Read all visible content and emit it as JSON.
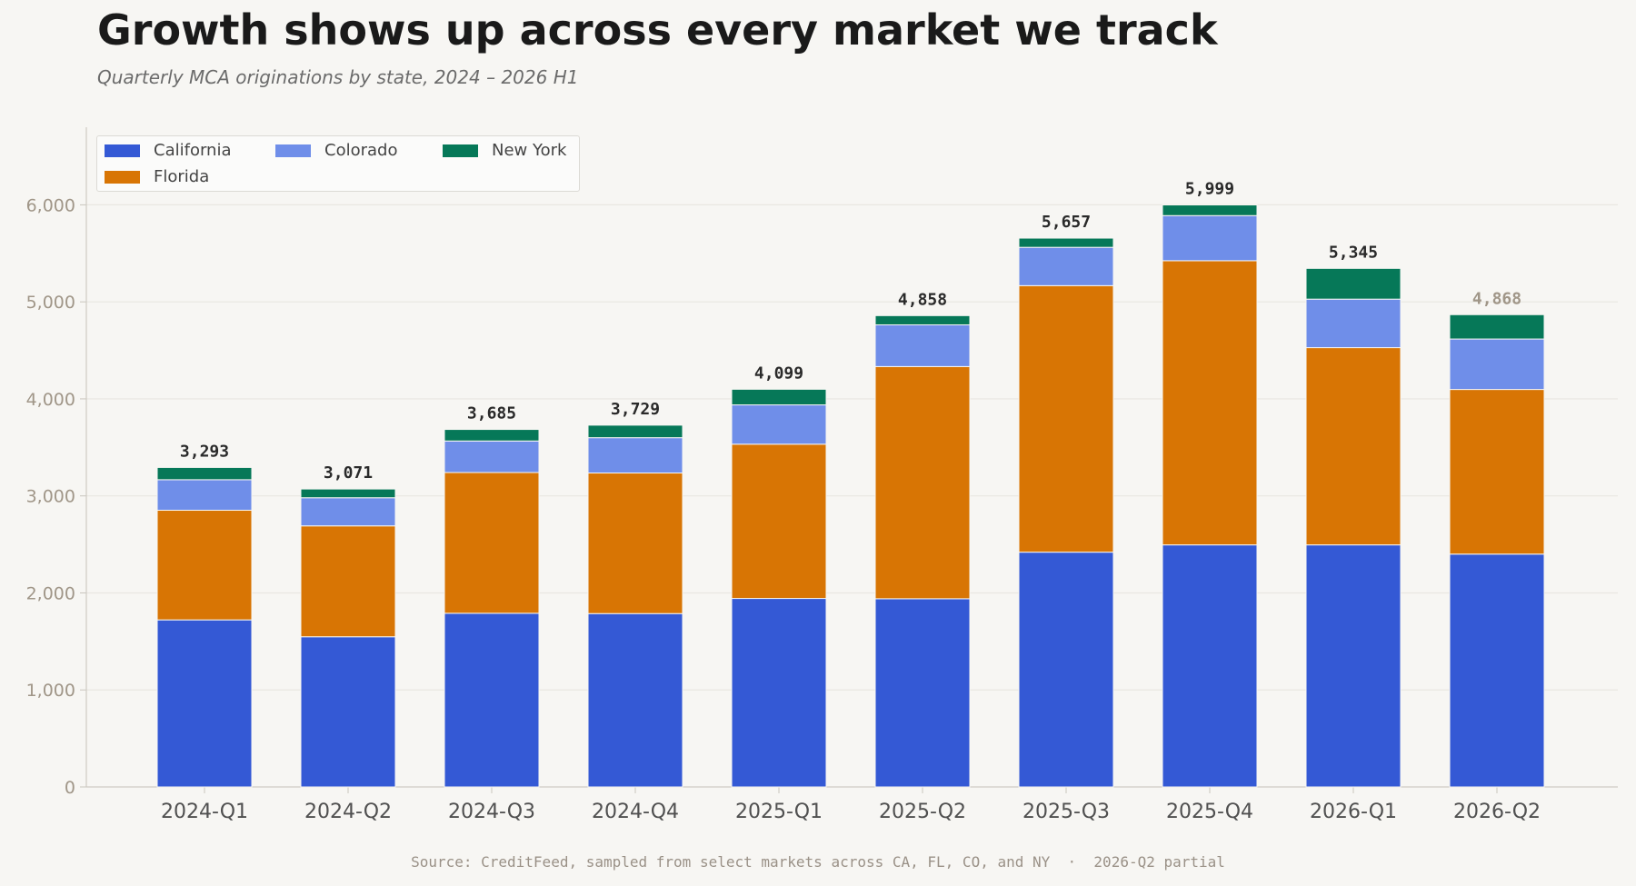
{
  "chart_data": {
    "type": "bar",
    "stacked": true,
    "title": "Growth shows up across every market we track",
    "subtitle": "Quarterly MCA originations by state, 2024 – 2026 H1",
    "categories": [
      "2024-Q1",
      "2024-Q2",
      "2024-Q3",
      "2024-Q4",
      "2025-Q1",
      "2025-Q2",
      "2025-Q3",
      "2025-Q4",
      "2026-Q1",
      "2026-Q2"
    ],
    "series": [
      {
        "name": "California",
        "color": "#3459d5",
        "values": [
          1722,
          1548,
          1790,
          1787,
          1943,
          1940,
          2420,
          2495,
          2495,
          2400
        ]
      },
      {
        "name": "Florida",
        "color": "#d87504",
        "values": [
          1130,
          1143,
          1451,
          1449,
          1590,
          2393,
          2747,
          2929,
          2033,
          1697
        ]
      },
      {
        "name": "Colorado",
        "color": "#6f8ee9",
        "values": [
          315,
          290,
          325,
          364,
          405,
          430,
          395,
          465,
          500,
          520
        ]
      },
      {
        "name": "New York",
        "color": "#067858",
        "values": [
          126,
          90,
          119,
          129,
          161,
          95,
          95,
          110,
          317,
          251
        ]
      }
    ],
    "totals": [
      "3,293",
      "3,071",
      "3,685",
      "3,729",
      "4,099",
      "4,858",
      "5,657",
      "5,999",
      "5,345",
      "4,868"
    ],
    "partial_index": 9,
    "ylim": [
      0,
      6800
    ],
    "yticks": [
      0,
      1000,
      2000,
      3000,
      4000,
      5000,
      6000
    ],
    "ytick_labels": [
      "0",
      "1,000",
      "2,000",
      "3,000",
      "4,000",
      "5,000",
      "6,000"
    ],
    "grid": true,
    "legend_position": "top-left",
    "xlabel": "",
    "ylabel": ""
  },
  "source_note": "Source: CreditFeed, sampled from select markets across CA, FL, CO, and NY  ·  2026-Q2 partial",
  "colors": {
    "background": "#f7f6f3",
    "total_label": "#2a2a2a",
    "partial_total_label": "#a09688"
  }
}
